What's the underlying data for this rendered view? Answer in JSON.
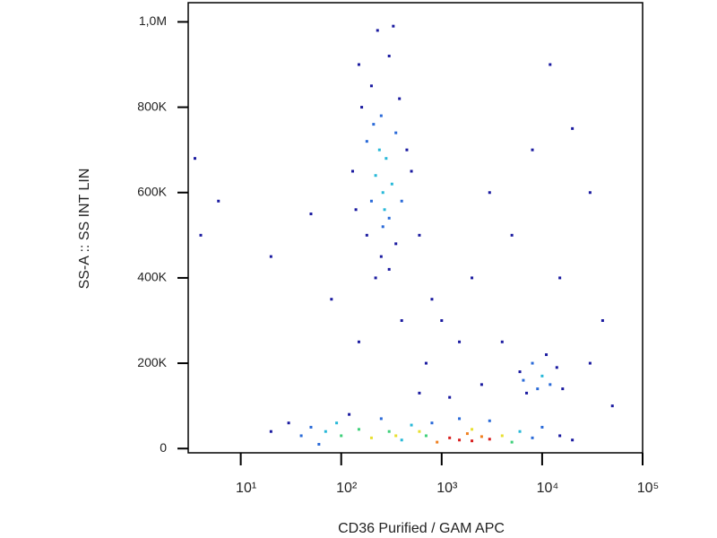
{
  "chart_data": {
    "type": "scatter",
    "xlabel": "CD36 Purified / GAM APC",
    "ylabel": "SS-A :: SS INT LIN",
    "log_x": true,
    "xlim": [
      3,
      100000
    ],
    "xticks": [
      {
        "value": 10,
        "label": "10¹"
      },
      {
        "value": 100,
        "label": "10²"
      },
      {
        "value": 1000,
        "label": "10³"
      },
      {
        "value": 10000,
        "label": "10⁴"
      },
      {
        "value": 100000,
        "label": "10⁵"
      }
    ],
    "ylim": [
      -10000,
      1045000
    ],
    "yticks": [
      0,
      {
        "value": 200000,
        "label": "200K"
      },
      {
        "value": 400000,
        "label": "400K"
      },
      {
        "value": 600000,
        "label": "600K"
      },
      {
        "value": 800000,
        "label": "800K"
      },
      {
        "value": 1000000,
        "label": "1,0M"
      }
    ],
    "x": [
      150,
      200,
      300,
      250,
      180,
      350,
      280,
      220,
      320,
      260,
      200,
      400,
      300,
      180,
      350,
      250,
      300,
      220,
      130,
      450,
      140,
      500,
      240,
      270,
      160,
      380,
      230,
      330,
      260,
      210,
      600,
      800,
      1000,
      1500,
      2000,
      3000,
      5000,
      8000,
      12000,
      20000,
      30000,
      40000,
      700,
      400,
      150,
      80,
      50,
      20,
      4,
      6,
      3.5,
      30000,
      50000,
      15000,
      2500,
      1200,
      600,
      4000,
      6000,
      8000,
      10000,
      12000,
      9000,
      7000,
      14000,
      11000,
      6500,
      16000,
      20,
      30,
      40,
      50,
      70,
      90,
      100,
      150,
      200,
      300,
      400,
      500,
      700,
      900,
      1200,
      1500,
      2000,
      2500,
      3000,
      4000,
      5000,
      6000,
      8000,
      10000,
      15000,
      20000,
      800,
      1500,
      3000,
      250,
      120,
      60,
      2000,
      600,
      350,
      1800
    ],
    "values": [
      900000,
      850000,
      920000,
      780000,
      720000,
      740000,
      680000,
      640000,
      620000,
      600000,
      580000,
      580000,
      540000,
      500000,
      480000,
      450000,
      420000,
      400000,
      650000,
      700000,
      560000,
      650000,
      700000,
      560000,
      800000,
      820000,
      980000,
      990000,
      520000,
      760000,
      500000,
      350000,
      300000,
      250000,
      400000,
      600000,
      500000,
      700000,
      900000,
      750000,
      600000,
      300000,
      200000,
      300000,
      250000,
      350000,
      550000,
      450000,
      500000,
      580000,
      680000,
      200000,
      100000,
      400000,
      150000,
      120000,
      130000,
      250000,
      180000,
      200000,
      170000,
      150000,
      140000,
      130000,
      190000,
      220000,
      160000,
      140000,
      40000,
      60000,
      30000,
      50000,
      40000,
      60000,
      30000,
      45000,
      25000,
      40000,
      20000,
      55000,
      30000,
      15000,
      25000,
      20000,
      18000,
      28000,
      22000,
      30000,
      15000,
      40000,
      25000,
      50000,
      30000,
      20000,
      60000,
      70000,
      65000,
      70000,
      80000,
      10000,
      45000,
      40000,
      30000,
      35000
    ],
    "colors": [
      "#1a1aa0",
      "#1a1aa0",
      "#1a1aa0",
      "#2a6ad8",
      "#2a6ad8",
      "#2a6ad8",
      "#27b8d8",
      "#27b8d8",
      "#27b8d8",
      "#27b8d8",
      "#2a6ad8",
      "#2a6ad8",
      "#2a6ad8",
      "#1a1aa0",
      "#1a1aa0",
      "#1a1aa0",
      "#1a1aa0",
      "#1a1aa0",
      "#1a1aa0",
      "#1a1aa0",
      "#1a1aa0",
      "#1a1aa0",
      "#27b8d8",
      "#27b8d8",
      "#1a1aa0",
      "#1a1aa0",
      "#1a1aa0",
      "#1a1aa0",
      "#2a6ad8",
      "#2a6ad8",
      "#1a1aa0",
      "#1a1aa0",
      "#1a1aa0",
      "#1a1aa0",
      "#1a1aa0",
      "#1a1aa0",
      "#1a1aa0",
      "#1a1aa0",
      "#1a1aa0",
      "#1a1aa0",
      "#1a1aa0",
      "#1a1aa0",
      "#1a1aa0",
      "#1a1aa0",
      "#1a1aa0",
      "#1a1aa0",
      "#1a1aa0",
      "#1a1aa0",
      "#1a1aa0",
      "#1a1aa0",
      "#1a1aa0",
      "#1a1aa0",
      "#1a1aa0",
      "#1a1aa0",
      "#1a1aa0",
      "#1a1aa0",
      "#1a1aa0",
      "#1a1aa0",
      "#1a1aa0",
      "#2a6ad8",
      "#27b8d8",
      "#2a6ad8",
      "#2a6ad8",
      "#1a1aa0",
      "#1a1aa0",
      "#1a1aa0",
      "#2a6ad8",
      "#1a1aa0",
      "#1a1aa0",
      "#1a1aa0",
      "#2a6ad8",
      "#2a6ad8",
      "#27b8d8",
      "#27b8d8",
      "#3fd07a",
      "#3fd07a",
      "#e8e030",
      "#3fd07a",
      "#27b8d8",
      "#27b8d8",
      "#3fd07a",
      "#f08020",
      "#d82020",
      "#d82020",
      "#d82020",
      "#f08020",
      "#d82020",
      "#e8e030",
      "#3fd07a",
      "#27b8d8",
      "#2a6ad8",
      "#2a6ad8",
      "#1a1aa0",
      "#1a1aa0",
      "#2a6ad8",
      "#2a6ad8",
      "#2a6ad8",
      "#2a6ad8",
      "#1a1aa0",
      "#2a6ad8",
      "#e8e030",
      "#e8e030",
      "#e8e030",
      "#f08020"
    ]
  }
}
